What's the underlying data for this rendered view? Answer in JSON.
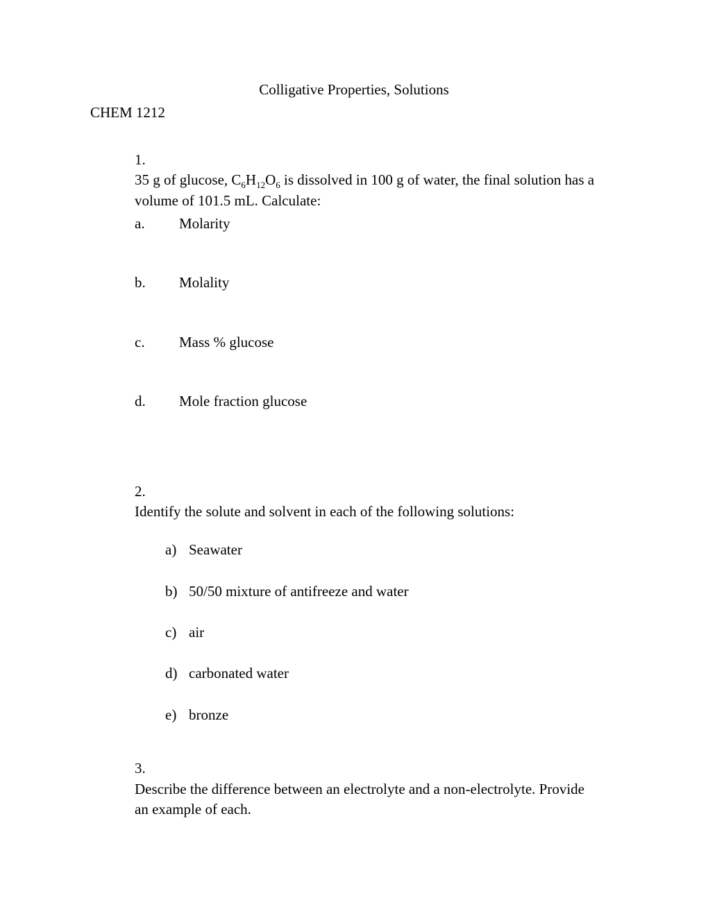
{
  "title": "Colligative Properties, Solutions",
  "course": "CHEM 1212",
  "q1": {
    "num": "1.",
    "text_pre": "35 g of glucose, C",
    "sub1": "6",
    "mid1": "H",
    "sub2": "12",
    "mid2": "O",
    "sub3": "6",
    "text_post": " is dissolved in 100 g of water, the final solution has a volume of 101.5 mL.  Calculate:",
    "a_letter": "a.",
    "a_text": "Molarity",
    "b_letter": "b.",
    "b_text": "Molality",
    "c_letter": "c.",
    "c_text": "Mass % glucose",
    "d_letter": "d.",
    "d_text": "Mole fraction glucose"
  },
  "q2": {
    "num": "2.",
    "text": "Identify the solute and solvent in each of the following solutions:",
    "a_letter": "a)",
    "a_text": "Seawater",
    "b_letter": "b)",
    "b_text": " 50/50 mixture of antifreeze and water",
    "c_letter": "c)",
    "c_text": "air",
    "d_letter": "d)",
    "d_text": "carbonated water",
    "e_letter": "e)",
    "e_text": "bronze"
  },
  "q3": {
    "num": "3.",
    "text": "Describe the difference between an electrolyte and a non-electrolyte.  Provide an example of each."
  }
}
